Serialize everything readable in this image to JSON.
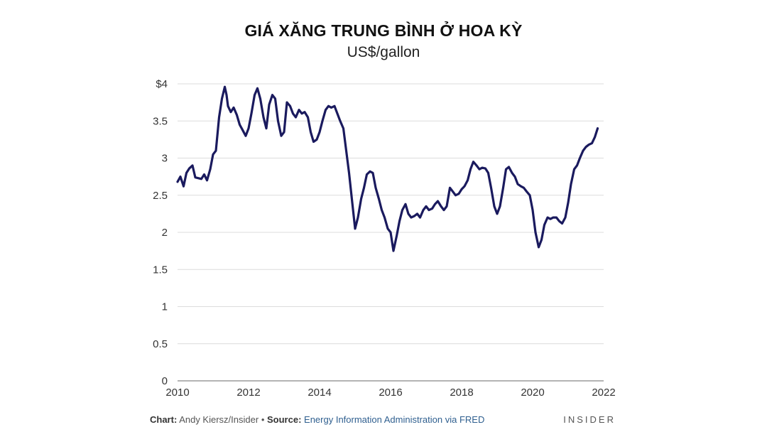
{
  "chart_data": {
    "type": "line",
    "title": "GIÁ XĂNG TRUNG BÌNH Ở HOA KỲ",
    "subtitle": "US$/gallon",
    "xlim": [
      2010,
      2022
    ],
    "ylim": [
      0,
      4
    ],
    "grid": true,
    "x_ticks": [
      "2010",
      "2012",
      "2014",
      "2016",
      "2018",
      "2020",
      "2022"
    ],
    "x_tick_values": [
      2010,
      2012,
      2014,
      2016,
      2018,
      2020,
      2022
    ],
    "y_ticks": [
      "$4",
      "3.5",
      "3",
      "2.5",
      "2",
      "1.5",
      "1",
      "0.5",
      "0"
    ],
    "y_tick_values": [
      4,
      3.5,
      3,
      2.5,
      2,
      1.5,
      1,
      0.5,
      0
    ],
    "line_color": "#1a1a5e",
    "series": [
      {
        "x": [
          2010.0,
          2010.08,
          2010.17,
          2010.25,
          2010.33,
          2010.42,
          2010.5,
          2010.58,
          2010.67,
          2010.75,
          2010.83,
          2010.92,
          2011.0,
          2011.08,
          2011.17,
          2011.25,
          2011.33,
          2011.38,
          2011.42,
          2011.5,
          2011.58,
          2011.67,
          2011.75,
          2011.83,
          2011.92,
          2012.0,
          2012.08,
          2012.17,
          2012.25,
          2012.33,
          2012.42,
          2012.5,
          2012.58,
          2012.67,
          2012.75,
          2012.83,
          2012.92,
          2013.0,
          2013.08,
          2013.17,
          2013.25,
          2013.33,
          2013.42,
          2013.5,
          2013.58,
          2013.67,
          2013.75,
          2013.83,
          2013.92,
          2014.0,
          2014.08,
          2014.17,
          2014.25,
          2014.33,
          2014.42,
          2014.5,
          2014.58,
          2014.67,
          2014.75,
          2014.83,
          2014.92,
          2015.0,
          2015.08,
          2015.17,
          2015.25,
          2015.33,
          2015.42,
          2015.5,
          2015.58,
          2015.67,
          2015.75,
          2015.83,
          2015.92,
          2016.0,
          2016.08,
          2016.17,
          2016.25,
          2016.33,
          2016.42,
          2016.5,
          2016.58,
          2016.67,
          2016.75,
          2016.83,
          2016.92,
          2017.0,
          2017.08,
          2017.17,
          2017.25,
          2017.33,
          2017.42,
          2017.5,
          2017.58,
          2017.67,
          2017.75,
          2017.83,
          2017.92,
          2018.0,
          2018.08,
          2018.17,
          2018.25,
          2018.33,
          2018.42,
          2018.5,
          2018.58,
          2018.67,
          2018.75,
          2018.83,
          2018.92,
          2019.0,
          2019.08,
          2019.17,
          2019.25,
          2019.33,
          2019.42,
          2019.5,
          2019.58,
          2019.67,
          2019.75,
          2019.83,
          2019.92,
          2020.0,
          2020.08,
          2020.17,
          2020.25,
          2020.33,
          2020.42,
          2020.5,
          2020.58,
          2020.67,
          2020.75,
          2020.83,
          2020.92,
          2021.0,
          2021.08,
          2021.17,
          2021.25,
          2021.33,
          2021.42,
          2021.5,
          2021.58,
          2021.67,
          2021.75,
          2021.83
        ],
        "y": [
          2.68,
          2.75,
          2.62,
          2.8,
          2.86,
          2.9,
          2.74,
          2.73,
          2.72,
          2.78,
          2.7,
          2.85,
          3.05,
          3.1,
          3.55,
          3.8,
          3.96,
          3.85,
          3.7,
          3.62,
          3.68,
          3.58,
          3.45,
          3.38,
          3.3,
          3.4,
          3.6,
          3.85,
          3.94,
          3.8,
          3.55,
          3.4,
          3.72,
          3.85,
          3.8,
          3.5,
          3.3,
          3.35,
          3.75,
          3.7,
          3.6,
          3.55,
          3.65,
          3.6,
          3.62,
          3.55,
          3.35,
          3.22,
          3.25,
          3.35,
          3.5,
          3.65,
          3.7,
          3.68,
          3.7,
          3.6,
          3.5,
          3.4,
          3.1,
          2.8,
          2.4,
          2.05,
          2.2,
          2.45,
          2.6,
          2.78,
          2.82,
          2.8,
          2.6,
          2.45,
          2.3,
          2.2,
          2.05,
          2.0,
          1.75,
          1.95,
          2.15,
          2.3,
          2.38,
          2.25,
          2.2,
          2.22,
          2.25,
          2.2,
          2.3,
          2.35,
          2.3,
          2.32,
          2.38,
          2.42,
          2.35,
          2.3,
          2.35,
          2.6,
          2.55,
          2.5,
          2.52,
          2.58,
          2.62,
          2.7,
          2.85,
          2.95,
          2.9,
          2.85,
          2.87,
          2.86,
          2.8,
          2.6,
          2.35,
          2.25,
          2.35,
          2.6,
          2.85,
          2.88,
          2.8,
          2.75,
          2.65,
          2.62,
          2.6,
          2.55,
          2.5,
          2.3,
          2.0,
          1.8,
          1.9,
          2.1,
          2.2,
          2.18,
          2.2,
          2.2,
          2.15,
          2.12,
          2.2,
          2.4,
          2.65,
          2.85,
          2.9,
          3.0,
          3.1,
          3.15,
          3.18,
          3.2,
          3.28,
          3.4
        ]
      }
    ],
    "footer": {
      "chart_label": "Chart:",
      "chart_author": "Andy Kiersz/Insider",
      "separator": "•",
      "source_label": "Source:",
      "source_text": "Energy Information Administration via FRED"
    },
    "brand": "INSIDER"
  }
}
